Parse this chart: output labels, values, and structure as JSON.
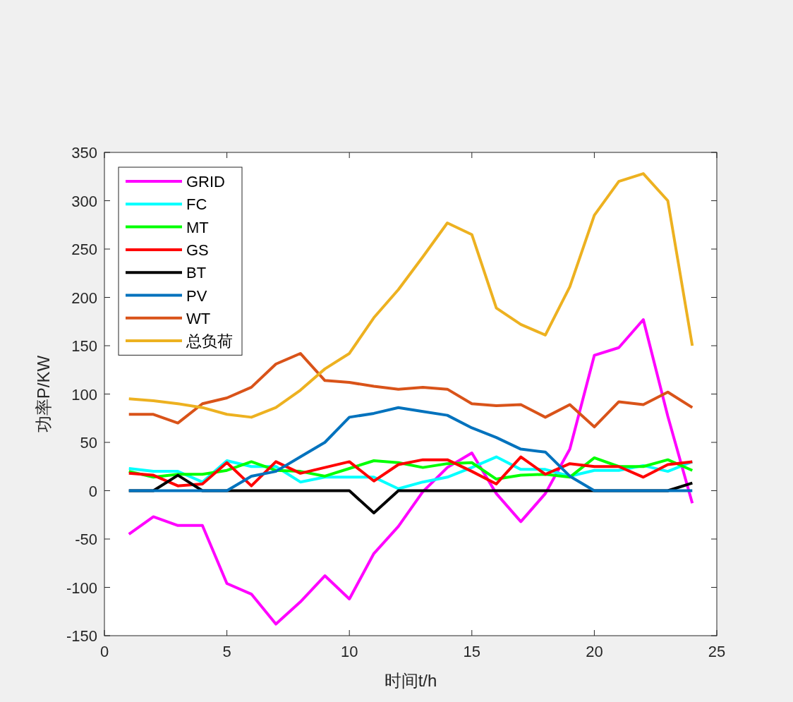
{
  "chart_data": {
    "type": "line",
    "xlabel": "时间t/h",
    "ylabel": "功率P/KW",
    "x": [
      1,
      2,
      3,
      4,
      5,
      6,
      7,
      8,
      9,
      10,
      11,
      12,
      13,
      14,
      15,
      16,
      17,
      18,
      19,
      20,
      21,
      22,
      23,
      24
    ],
    "xlim": [
      0,
      25
    ],
    "xticks": [
      0,
      5,
      10,
      15,
      20,
      25
    ],
    "ylim": [
      -150,
      350
    ],
    "yticks": [
      -150,
      -100,
      -50,
      0,
      50,
      100,
      150,
      200,
      250,
      300,
      350
    ],
    "grid": false,
    "legend": "top left",
    "series": [
      {
        "name": "GRID",
        "color": "#ff00ff",
        "values": [
          -45,
          -27,
          -36,
          -36,
          -96,
          -107,
          -138,
          -115,
          -88,
          -112,
          -65,
          -37,
          -1,
          24,
          39,
          -3,
          -32,
          -3,
          43,
          140,
          148,
          177,
          77,
          -13
        ]
      },
      {
        "name": "FC",
        "color": "#00ffff",
        "values": [
          23,
          20,
          20,
          9,
          31,
          25,
          25,
          9,
          14,
          14,
          14,
          2,
          9,
          14,
          24,
          35,
          22,
          22,
          15,
          21,
          21,
          26,
          20,
          30
        ]
      },
      {
        "name": "MT",
        "color": "#00ff00",
        "values": [
          20,
          14,
          17,
          17,
          21,
          30,
          21,
          20,
          15,
          23,
          31,
          29,
          24,
          28,
          29,
          12,
          16,
          17,
          14,
          34,
          25,
          25,
          32,
          21
        ]
      },
      {
        "name": "GS",
        "color": "#ff0000",
        "values": [
          18,
          16,
          5,
          7,
          29,
          5,
          30,
          18,
          24,
          30,
          10,
          27,
          32,
          32,
          20,
          7,
          35,
          17,
          28,
          25,
          25,
          14,
          27,
          30
        ]
      },
      {
        "name": "BT",
        "color": "#000000",
        "values": [
          0,
          0,
          16,
          0,
          0,
          0,
          0,
          0,
          0,
          0,
          -23,
          0,
          0,
          0,
          0,
          0,
          0,
          0,
          0,
          0,
          0,
          0,
          0,
          8
        ]
      },
      {
        "name": "PV",
        "color": "#0072bd",
        "values": [
          0,
          0,
          0,
          0,
          0,
          15,
          20,
          35,
          50,
          76,
          80,
          86,
          82,
          78,
          65,
          55,
          43,
          40,
          15,
          0,
          0,
          0,
          0,
          0
        ]
      },
      {
        "name": "WT",
        "color": "#d95319",
        "values": [
          79,
          79,
          70,
          90,
          96,
          107,
          131,
          142,
          114,
          112,
          108,
          105,
          107,
          105,
          90,
          88,
          89,
          76,
          89,
          66,
          92,
          89,
          102,
          86
        ]
      },
      {
        "name": "总负荷",
        "color": "#edb120",
        "values": [
          95,
          93,
          90,
          86,
          79,
          76,
          86,
          104,
          126,
          142,
          179,
          208,
          242,
          277,
          265,
          189,
          172,
          161,
          211,
          285,
          320,
          328,
          300,
          150
        ]
      }
    ]
  }
}
